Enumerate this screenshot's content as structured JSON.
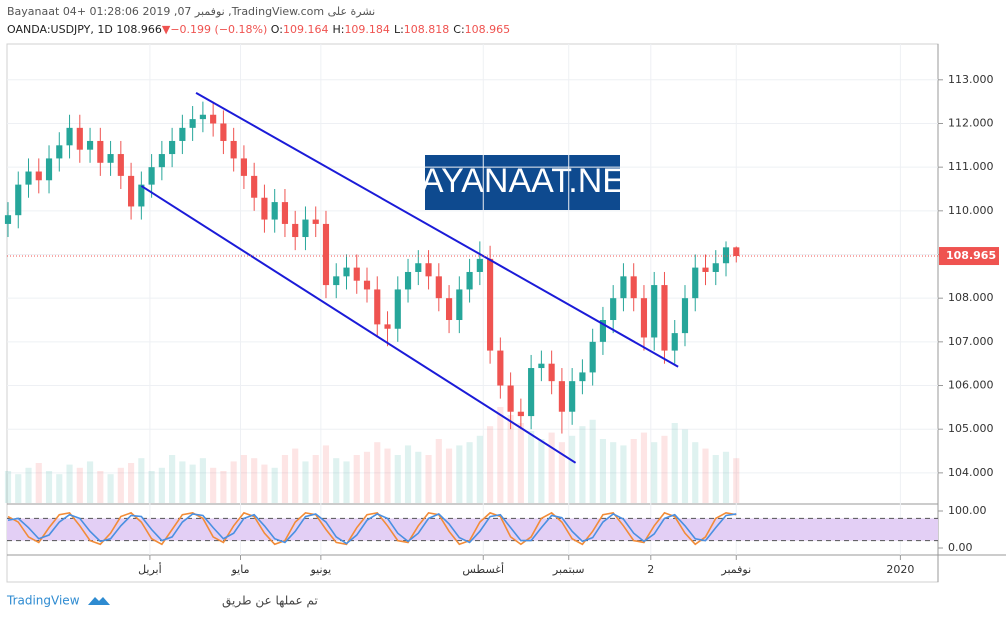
{
  "header": {
    "title": "نشرة على TradingView.com, نوفمبر 07, 2019 01:28:06 +04 Bayanaat",
    "symbol": "OANDA:USDJPY, 1D",
    "price": "108.966",
    "change": "−0.199 (−0.18%)",
    "ohlc": [
      {
        "label": "O:",
        "value": "109.164"
      },
      {
        "label": "H:",
        "value": "109.184"
      },
      {
        "label": "L:",
        "value": "108.818"
      },
      {
        "label": "C:",
        "value": "108.965"
      }
    ]
  },
  "chart_data": {
    "type": "candlestick",
    "x": [
      0,
      3,
      6,
      9,
      12,
      15,
      18,
      21,
      24,
      27,
      30,
      33,
      36,
      39,
      42,
      45,
      48,
      51,
      54,
      57,
      60,
      63,
      66,
      69,
      72,
      75,
      78,
      81,
      84,
      87,
      90,
      93,
      96,
      99,
      102,
      105,
      108,
      111,
      114,
      117,
      120,
      123,
      126,
      129,
      132,
      135,
      138,
      141,
      144,
      147,
      150,
      153,
      156,
      159,
      162,
      165,
      168,
      171,
      174,
      177,
      180,
      183,
      186,
      189,
      192,
      195,
      198,
      201,
      204,
      207,
      210,
      213
    ],
    "open": [
      109.7,
      109.9,
      110.6,
      110.9,
      110.7,
      111.2,
      111.5,
      111.9,
      111.4,
      111.6,
      111.1,
      111.3,
      110.8,
      110.1,
      110.6,
      111.0,
      111.3,
      111.6,
      111.9,
      112.1,
      112.2,
      112.0,
      111.6,
      111.2,
      110.8,
      110.3,
      109.8,
      110.2,
      109.7,
      109.4,
      109.8,
      109.7,
      108.3,
      108.5,
      108.7,
      108.4,
      108.2,
      107.4,
      107.3,
      108.2,
      108.6,
      108.8,
      108.5,
      108.0,
      107.5,
      108.2,
      108.6,
      108.9,
      106.8,
      106.0,
      105.4,
      105.3,
      106.4,
      106.5,
      106.1,
      105.4,
      106.1,
      106.3,
      107.0,
      107.5,
      108.0,
      108.5,
      108.0,
      107.1,
      108.3,
      106.8,
      107.2,
      108.0,
      108.7,
      108.6,
      108.8,
      109.164
    ],
    "high": [
      110.2,
      110.9,
      111.2,
      111.2,
      111.5,
      111.8,
      112.2,
      112.2,
      111.9,
      111.9,
      111.6,
      111.6,
      111.1,
      110.9,
      111.3,
      111.6,
      111.9,
      112.2,
      112.4,
      112.5,
      112.5,
      112.3,
      111.9,
      111.5,
      111.1,
      110.6,
      110.5,
      110.5,
      110.0,
      110.1,
      110.1,
      110.0,
      108.8,
      109.0,
      109.0,
      108.7,
      108.5,
      107.7,
      108.5,
      108.9,
      109.1,
      109.1,
      108.8,
      108.3,
      108.5,
      108.9,
      109.3,
      109.2,
      107.1,
      106.3,
      105.7,
      106.7,
      106.8,
      106.8,
      106.4,
      106.4,
      106.6,
      107.3,
      107.8,
      108.3,
      108.8,
      108.8,
      108.3,
      108.6,
      108.6,
      107.5,
      108.3,
      109.0,
      109.0,
      109.1,
      109.3,
      109.184
    ],
    "low": [
      109.4,
      109.6,
      110.3,
      110.4,
      110.4,
      110.9,
      111.2,
      111.1,
      111.1,
      110.8,
      110.8,
      110.5,
      109.8,
      109.8,
      110.3,
      110.7,
      111.0,
      111.3,
      111.6,
      111.8,
      111.7,
      111.3,
      110.9,
      110.5,
      110.0,
      109.5,
      109.5,
      109.4,
      109.1,
      109.1,
      109.4,
      108.0,
      108.0,
      108.2,
      108.1,
      107.9,
      107.1,
      106.9,
      107.0,
      107.9,
      108.3,
      108.2,
      107.7,
      107.2,
      107.2,
      107.9,
      108.3,
      106.5,
      105.7,
      105.0,
      105.0,
      105.0,
      106.1,
      105.8,
      104.9,
      105.1,
      105.8,
      106.0,
      106.7,
      107.2,
      107.7,
      107.7,
      106.8,
      106.8,
      106.5,
      106.5,
      106.9,
      107.7,
      108.3,
      108.3,
      108.5,
      108.818
    ],
    "close": [
      109.9,
      110.6,
      110.9,
      110.7,
      111.2,
      111.5,
      111.9,
      111.4,
      111.6,
      111.1,
      111.3,
      110.8,
      110.1,
      110.6,
      111.0,
      111.3,
      111.6,
      111.9,
      112.1,
      112.2,
      112.0,
      111.6,
      111.2,
      110.8,
      110.3,
      109.8,
      110.2,
      109.7,
      109.4,
      109.8,
      109.7,
      108.3,
      108.5,
      108.7,
      108.4,
      108.2,
      107.4,
      107.3,
      108.2,
      108.6,
      108.8,
      108.5,
      108.0,
      107.5,
      108.2,
      108.6,
      108.9,
      106.8,
      106.0,
      105.4,
      105.3,
      106.4,
      106.5,
      106.1,
      105.4,
      106.1,
      106.3,
      107.0,
      107.5,
      108.0,
      108.5,
      108.0,
      107.1,
      108.3,
      106.8,
      107.2,
      108.0,
      108.7,
      108.6,
      108.8,
      109.164,
      108.965
    ],
    "volume": [
      20,
      18,
      22,
      25,
      20,
      18,
      24,
      22,
      26,
      20,
      18,
      22,
      25,
      28,
      20,
      22,
      30,
      26,
      24,
      28,
      22,
      20,
      26,
      30,
      28,
      24,
      22,
      30,
      34,
      26,
      30,
      36,
      28,
      26,
      30,
      32,
      38,
      34,
      30,
      36,
      32,
      30,
      40,
      34,
      36,
      38,
      42,
      48,
      60,
      55,
      50,
      45,
      40,
      44,
      38,
      42,
      48,
      52,
      40,
      38,
      36,
      40,
      44,
      38,
      42,
      50,
      46,
      38,
      34,
      30,
      32,
      28
    ],
    "up_color": "#26a69a",
    "down_color": "#ef5350",
    "xlim": [
      0,
      272
    ],
    "xticks": [
      {
        "value": 41.5,
        "label": "أبريل"
      },
      {
        "value": 68,
        "label": "مايو"
      },
      {
        "value": 91.5,
        "label": "يونيو"
      },
      {
        "value": 139,
        "label": "أغسطس"
      },
      {
        "value": 164,
        "label": "سبتمبر"
      },
      {
        "value": 188,
        "label": "2"
      },
      {
        "value": 213,
        "label": "نوفمبر"
      },
      {
        "value": 261,
        "label": "2020"
      }
    ],
    "ylim": [
      103.31,
      113.82
    ],
    "yticks": [
      {
        "value": 104,
        "label": "104.000"
      },
      {
        "value": 105,
        "label": "105.000"
      },
      {
        "value": 106,
        "label": "106.000"
      },
      {
        "value": 107,
        "label": "107.000"
      },
      {
        "value": 108,
        "label": "108.000"
      },
      {
        "value": 109,
        "label": "109.000"
      },
      {
        "value": 110,
        "label": "110.000"
      },
      {
        "value": 111,
        "label": "111.000"
      },
      {
        "value": 112,
        "label": "112.000"
      },
      {
        "value": 113,
        "label": "113.000"
      }
    ],
    "grid": true,
    "last_price": {
      "value": 108.965,
      "label": "108.965"
    },
    "trendline_color": "#1b1bd8",
    "trendlines": [
      {
        "x": [
          55,
          196
        ],
        "y": [
          112.7,
          106.43
        ]
      },
      {
        "x": [
          39,
          166
        ],
        "y": [
          110.57,
          104.23
        ]
      }
    ],
    "watermark": "BAYANAAT.NET",
    "oscillator": {
      "type": "line",
      "ylim": [
        -18.9,
        116.2
      ],
      "yticks": [
        {
          "value": 0,
          "label": "0.00"
        },
        {
          "value": 100,
          "label": "100.00"
        }
      ],
      "band": [
        20,
        80
      ],
      "series": [
        {
          "color": "#f28c38",
          "values": [
            85,
            70,
            30,
            15,
            55,
            90,
            95,
            60,
            20,
            10,
            40,
            85,
            95,
            70,
            25,
            10,
            50,
            90,
            95,
            80,
            30,
            15,
            60,
            95,
            85,
            40,
            10,
            20,
            70,
            95,
            90,
            50,
            15,
            10,
            55,
            90,
            95,
            60,
            20,
            15,
            60,
            95,
            90,
            45,
            10,
            20,
            70,
            95,
            85,
            30,
            10,
            30,
            80,
            95,
            70,
            25,
            10,
            45,
            90,
            95,
            60,
            20,
            15,
            60,
            95,
            85,
            40,
            10,
            30,
            80,
            95,
            90
          ]
        },
        {
          "color": "#4a90e2",
          "values": [
            75,
            80,
            55,
            25,
            35,
            70,
            90,
            80,
            45,
            18,
            25,
            60,
            88,
            85,
            50,
            20,
            30,
            70,
            92,
            88,
            55,
            25,
            40,
            80,
            90,
            60,
            25,
            15,
            45,
            85,
            92,
            70,
            30,
            12,
            35,
            75,
            92,
            80,
            40,
            18,
            40,
            80,
            92,
            65,
            28,
            15,
            45,
            85,
            90,
            55,
            20,
            20,
            55,
            88,
            82,
            45,
            18,
            28,
            70,
            92,
            78,
            40,
            18,
            38,
            80,
            90,
            60,
            25,
            20,
            55,
            88,
            92
          ]
        }
      ]
    }
  },
  "footer": {
    "brand": "TradingView",
    "made_by": "تم عملها عن طريق"
  }
}
